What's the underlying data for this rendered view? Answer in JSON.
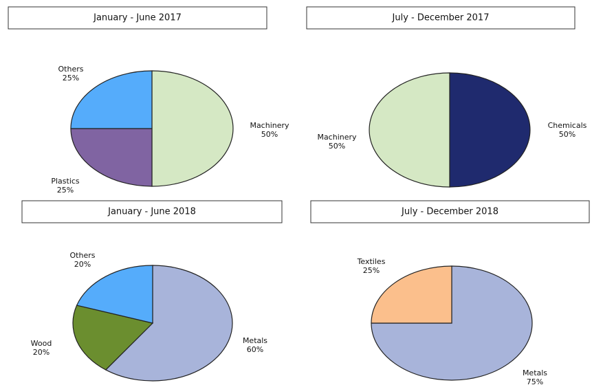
{
  "chart_data": [
    {
      "type": "pie",
      "title": "January - June 2017",
      "categories": [
        "Machinery",
        "Plastics",
        "Others"
      ],
      "values": [
        50,
        25,
        25
      ],
      "value_labels": [
        "50%",
        "25%",
        "25%"
      ],
      "colors": [
        "#d5e8c4",
        "#8064a2",
        "#55acfb"
      ]
    },
    {
      "type": "pie",
      "title": "July - December 2017",
      "categories": [
        "Chemicals",
        "Machinery"
      ],
      "values": [
        50,
        50
      ],
      "value_labels": [
        "50%",
        "50%"
      ],
      "colors": [
        "#1f2a6e",
        "#d5e8c4"
      ]
    },
    {
      "type": "pie",
      "title": "January - June 2018",
      "categories": [
        "Metals",
        "Wood",
        "Others"
      ],
      "values": [
        60,
        20,
        20
      ],
      "value_labels": [
        "60%",
        "20%",
        "20%"
      ],
      "colors": [
        "#a8b4da",
        "#6b8e2f",
        "#55acfb"
      ]
    },
    {
      "type": "pie",
      "title": "July - December 2018",
      "categories": [
        "Metals",
        "Textiles"
      ],
      "values": [
        75,
        25
      ],
      "value_labels": [
        "75%",
        "25%"
      ],
      "colors": [
        "#a8b4da",
        "#fbbf8c"
      ]
    }
  ]
}
